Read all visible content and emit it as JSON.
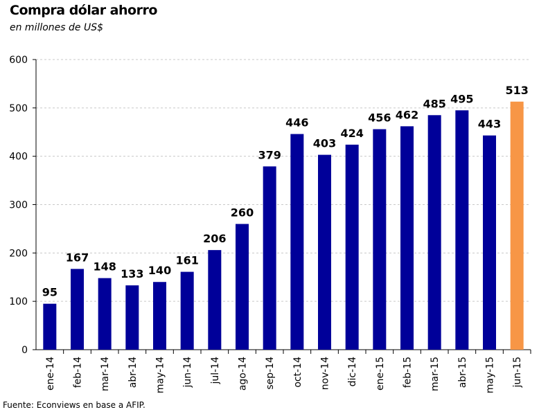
{
  "header": {
    "title": "Compra dólar ahorro",
    "subtitle": "en millones de US$"
  },
  "footer": {
    "source": "Fuente: Econviews en base a AFIP."
  },
  "colors": {
    "bar": "#000099",
    "highlight_bar": "#F79646",
    "gridline": "#C8C8C8",
    "axis": "#000000"
  },
  "chart_data": {
    "type": "bar",
    "title": "Compra dólar ahorro",
    "subtitle": "en millones de US$",
    "xlabel": "",
    "ylabel": "",
    "categories": [
      "ene-14",
      "feb-14",
      "mar-14",
      "abr-14",
      "may-14",
      "jun-14",
      "jul-14",
      "ago-14",
      "sep-14",
      "oct-14",
      "nov-14",
      "dic-14",
      "ene-15",
      "feb-15",
      "mar-15",
      "abr-15",
      "may-15",
      "jun-15"
    ],
    "values": [
      95,
      167,
      148,
      133,
      140,
      161,
      206,
      260,
      379,
      446,
      403,
      424,
      456,
      462,
      485,
      495,
      443,
      513
    ],
    "data_labels": [
      "95",
      "167",
      "148",
      "133",
      "140",
      "161",
      "206",
      "260",
      "379",
      "446",
      "403",
      "424",
      "456",
      "462",
      "485",
      "495",
      "443",
      "513"
    ],
    "highlight_index": 17,
    "ylim": [
      0,
      600
    ],
    "yticks": [
      "0",
      "100",
      "200",
      "300",
      "400",
      "500",
      "600"
    ],
    "ytick_values": [
      0,
      100,
      200,
      300,
      400,
      500,
      600
    ],
    "grid": true,
    "grid_style": "dashed-horizontal",
    "legend": "none"
  }
}
